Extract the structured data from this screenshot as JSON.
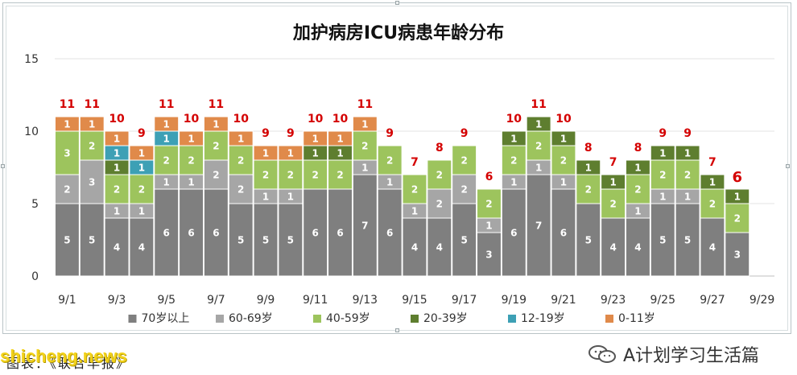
{
  "chart_data": {
    "type": "bar",
    "stacked": true,
    "title": "加护病房ICU病患年龄分布",
    "categories": [
      "9/1",
      "9/2",
      "9/3",
      "9/4",
      "9/5",
      "9/6",
      "9/7",
      "9/8",
      "9/9",
      "9/10",
      "9/11",
      "9/12",
      "9/13",
      "9/14",
      "9/15",
      "9/16",
      "9/17",
      "9/18",
      "9/19",
      "9/20",
      "9/21",
      "9/22",
      "9/23",
      "9/24",
      "9/25",
      "9/26",
      "9/27",
      "9/28",
      "9/29"
    ],
    "x_tick_labels": [
      "9/1",
      "9/3",
      "9/5",
      "9/7",
      "9/9",
      "9/11",
      "9/13",
      "9/15",
      "9/17",
      "9/19",
      "9/21",
      "9/23",
      "9/25",
      "9/27",
      "9/29"
    ],
    "ylim": [
      0,
      15
    ],
    "y_ticks": [
      "0",
      "5",
      "10",
      "15"
    ],
    "series": [
      {
        "name": "70岁以上",
        "color": "#7f7f7f",
        "values": [
          5,
          5,
          4,
          4,
          6,
          6,
          6,
          5,
          5,
          5,
          6,
          6,
          7,
          6,
          4,
          4,
          5,
          3,
          6,
          7,
          6,
          5,
          4,
          4,
          5,
          5,
          4,
          3,
          null
        ]
      },
      {
        "name": "60-69岁",
        "color": "#a6a6a6",
        "values": [
          2,
          3,
          1,
          1,
          1,
          1,
          2,
          2,
          1,
          1,
          0,
          0,
          1,
          1,
          1,
          2,
          2,
          1,
          1,
          1,
          1,
          0,
          0,
          1,
          1,
          1,
          0,
          0,
          null
        ]
      },
      {
        "name": "40-59岁",
        "color": "#9dc45d",
        "values": [
          3,
          2,
          2,
          2,
          2,
          2,
          2,
          2,
          2,
          2,
          2,
          2,
          2,
          2,
          2,
          2,
          2,
          2,
          2,
          2,
          2,
          2,
          2,
          2,
          2,
          2,
          2,
          2,
          null
        ]
      },
      {
        "name": "20-39岁",
        "color": "#5e7e2f",
        "values": [
          0,
          0,
          1,
          0,
          0,
          0,
          0,
          0,
          0,
          0,
          1,
          1,
          0,
          0,
          0,
          0,
          0,
          0,
          1,
          1,
          1,
          1,
          1,
          1,
          1,
          1,
          1,
          1,
          null
        ]
      },
      {
        "name": "12-19岁",
        "color": "#3da0b5",
        "values": [
          0,
          0,
          1,
          1,
          1,
          0,
          0,
          0,
          0,
          0,
          0,
          0,
          0,
          0,
          0,
          0,
          0,
          0,
          0,
          0,
          0,
          0,
          0,
          0,
          0,
          0,
          0,
          0,
          null
        ]
      },
      {
        "name": "0-11岁",
        "color": "#e08a4a",
        "values": [
          1,
          1,
          1,
          1,
          1,
          1,
          1,
          1,
          1,
          1,
          1,
          1,
          1,
          0,
          0,
          0,
          0,
          0,
          0,
          0,
          0,
          0,
          0,
          0,
          0,
          0,
          0,
          0,
          null
        ]
      }
    ],
    "totals": [
      11,
      11,
      10,
      9,
      11,
      10,
      11,
      10,
      9,
      9,
      10,
      10,
      11,
      9,
      7,
      8,
      9,
      6,
      10,
      11,
      10,
      8,
      7,
      8,
      9,
      9,
      7,
      6,
      null
    ],
    "grid": true,
    "legend_position": "bottom"
  },
  "footer": {
    "caption": "图表：《联合早报》",
    "watermark": "shicheng.news",
    "brand": "A计划学习生活篇"
  },
  "colors": {
    "total_label": "#d40000",
    "frame": "#b9c3c6"
  }
}
